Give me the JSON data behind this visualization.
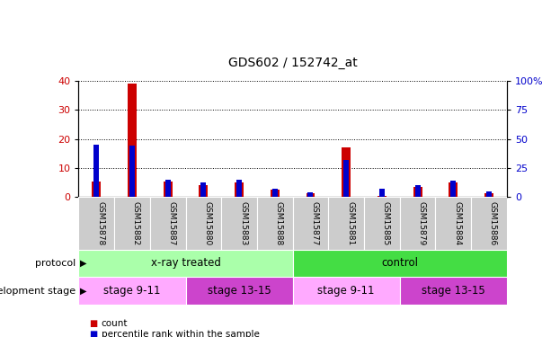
{
  "title": "GDS602 / 152742_at",
  "samples": [
    "GSM15878",
    "GSM15882",
    "GSM15887",
    "GSM15880",
    "GSM15883",
    "GSM15888",
    "GSM15877",
    "GSM15881",
    "GSM15885",
    "GSM15879",
    "GSM15884",
    "GSM15886"
  ],
  "count_values": [
    5.5,
    39.0,
    5.5,
    4.0,
    5.0,
    2.5,
    1.5,
    17.0,
    0.5,
    3.5,
    5.0,
    1.5
  ],
  "percentile_values": [
    45.0,
    44.0,
    15.0,
    12.5,
    15.0,
    7.5,
    4.0,
    32.0,
    7.5,
    10.0,
    14.0,
    5.0
  ],
  "red_color": "#cc0000",
  "blue_color": "#0000cc",
  "ylim_left": [
    0,
    40
  ],
  "ylim_right": [
    0,
    100
  ],
  "yticks_left": [
    0,
    10,
    20,
    30,
    40
  ],
  "yticks_right": [
    0,
    25,
    50,
    75,
    100
  ],
  "ytick_labels_right": [
    "0",
    "25",
    "50",
    "75",
    "100%"
  ],
  "protocol_labels": [
    {
      "text": "x-ray treated",
      "start": 0,
      "end": 6,
      "color": "#aaffaa"
    },
    {
      "text": "control",
      "start": 6,
      "end": 12,
      "color": "#44dd44"
    }
  ],
  "stage_labels": [
    {
      "text": "stage 9-11",
      "start": 0,
      "end": 3,
      "color": "#ffaaff"
    },
    {
      "text": "stage 13-15",
      "start": 3,
      "end": 6,
      "color": "#cc44cc"
    },
    {
      "text": "stage 9-11",
      "start": 6,
      "end": 9,
      "color": "#ffaaff"
    },
    {
      "text": "stage 13-15",
      "start": 9,
      "end": 12,
      "color": "#cc44cc"
    }
  ],
  "legend_count_label": "count",
  "legend_percentile_label": "percentile rank within the sample",
  "bar_width": 0.25,
  "background_color": "#ffffff",
  "tick_label_bg": "#cccccc"
}
